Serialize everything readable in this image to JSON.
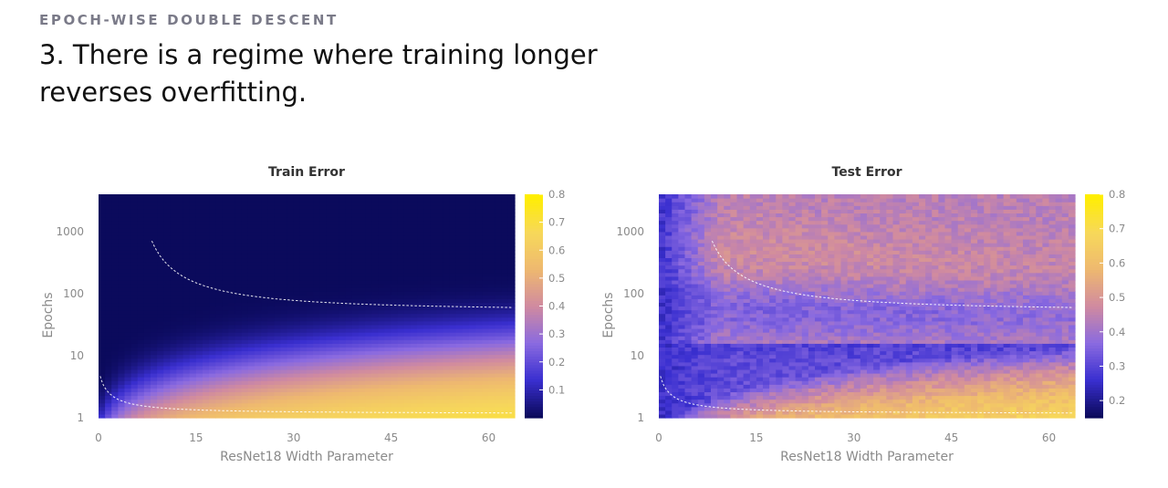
{
  "eyebrow": "EPOCH-WISE DOUBLE DESCENT",
  "headline": "3. There is a regime where training longer reverses overfitting.",
  "chart_data": [
    {
      "type": "heatmap",
      "title": "Train Error",
      "xlabel": "ResNet18 Width Parameter",
      "ylabel": "Epochs",
      "x_ticks": [
        "0",
        "15",
        "30",
        "45",
        "60"
      ],
      "y_ticks": [
        "1",
        "10",
        "100",
        "1000"
      ],
      "y_scale": "log",
      "xlim": [
        0,
        64
      ],
      "ylim": [
        1,
        4000
      ],
      "colorbar_ticks": [
        "0.1",
        "0.2",
        "0.3",
        "0.4",
        "0.5",
        "0.6",
        "0.7",
        "0.8"
      ],
      "colorbar_range": [
        0.0,
        0.8
      ],
      "colorscale": [
        "#0b0a5c",
        "#3a2fd0",
        "#8a6ae0",
        "#d08aa0",
        "#eeb870",
        "#f7d85a",
        "#ffee00"
      ]
    },
    {
      "type": "heatmap",
      "title": "Test Error",
      "xlabel": "ResNet18 Width Parameter",
      "ylabel": "Epochs",
      "x_ticks": [
        "0",
        "15",
        "30",
        "45",
        "60"
      ],
      "y_ticks": [
        "1",
        "10",
        "100",
        "1000"
      ],
      "y_scale": "log",
      "xlim": [
        0,
        64
      ],
      "ylim": [
        1,
        4000
      ],
      "colorbar_ticks": [
        "0.2",
        "0.3",
        "0.4",
        "0.5",
        "0.6",
        "0.7",
        "0.8"
      ],
      "colorbar_range": [
        0.15,
        0.8
      ],
      "colorscale": [
        "#0b0a5c",
        "#3a2fd0",
        "#8a6ae0",
        "#d08aa0",
        "#eeb870",
        "#f7d85a",
        "#ffee00"
      ]
    }
  ]
}
